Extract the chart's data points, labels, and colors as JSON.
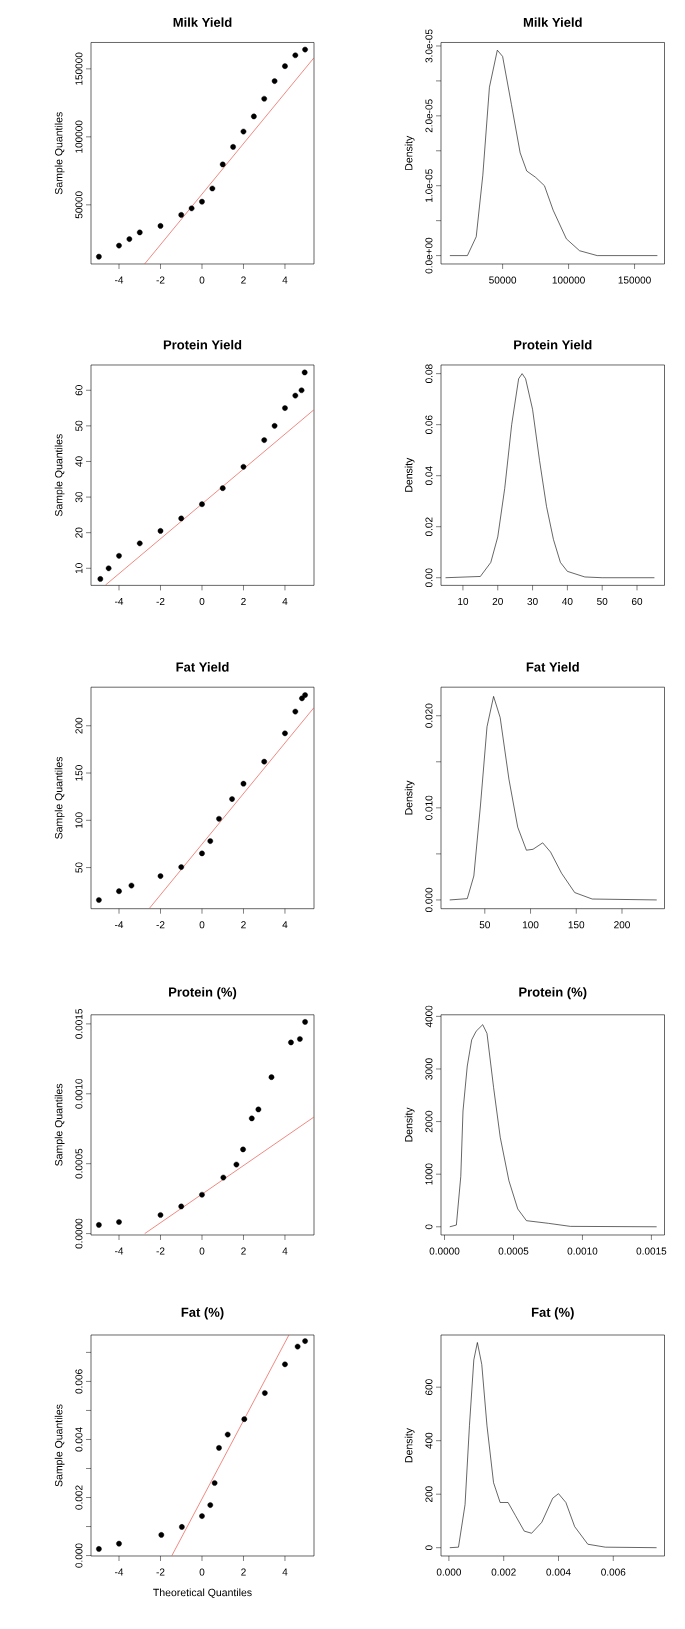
{
  "chart_data": [
    {
      "type": "scatter",
      "title": "Milk Yield",
      "ylabel": "Sample Quantiles",
      "marker": "circle",
      "xlim": [
        -5.35,
        5.4
      ],
      "ylim": [
        6500,
        169400
      ],
      "xticks": [
        -4,
        -2,
        0,
        2,
        4
      ],
      "yticks": [
        50000,
        100000,
        150000
      ],
      "series": [
        {
          "color": "#000000",
          "x": [
            -4.97,
            -4,
            -3.5,
            -3,
            -2,
            -1,
            -0.5,
            0,
            0.5,
            1,
            1.5,
            2,
            2.5,
            3,
            3.5,
            4,
            4.5,
            4.97
          ],
          "values": [
            11900,
            20000,
            24800,
            29700,
            34500,
            42600,
            47400,
            52300,
            62000,
            79700,
            92600,
            103900,
            115000,
            128000,
            141000,
            152000,
            160000,
            164200
          ]
        },
        {
          "type": "line",
          "marker": "none",
          "color": "#e8392e",
          "x": [
            -2.76,
            5.39
          ],
          "values": [
            6600,
            158000
          ]
        }
      ]
    },
    {
      "type": "line",
      "title": "Milk Yield",
      "ylabel": "Density",
      "color": "#000000",
      "xlim": [
        3300,
        172700
      ],
      "ylim": [
        -1.2e-06,
        3.05e-05
      ],
      "xticks": [
        50000,
        100000,
        150000
      ],
      "yticks": [
        {
          "value": 0,
          "label": "0.0e+00"
        },
        {
          "value": 5e-06,
          "label": null
        },
        {
          "value": 1e-05,
          "label": "1.0e-05"
        },
        {
          "value": 1.5e-05,
          "label": null
        },
        {
          "value": 2e-05,
          "label": "2.0e-05"
        },
        {
          "value": 2.5e-05,
          "label": null
        },
        {
          "value": 3e-05,
          "label": "3.0e-05"
        }
      ],
      "x": [
        10000,
        23300,
        30000,
        35000,
        40000,
        46000,
        50000,
        56700,
        63300,
        68300,
        75000,
        81700,
        88300,
        98300,
        108300,
        121700,
        167300
      ],
      "values": [
        0,
        0,
        2.7e-06,
        1.15e-05,
        2.41e-05,
        2.94e-05,
        2.85e-05,
        2.16e-05,
        1.47e-05,
        1.21e-05,
        1.12e-05,
        1e-05,
        6.5e-06,
        2.4e-06,
        7e-07,
        0,
        0
      ]
    },
    {
      "type": "scatter",
      "title": "Protein Yield",
      "ylabel": "Sample Quantiles",
      "marker": "circle",
      "xlim": [
        -5.35,
        5.4
      ],
      "ylim": [
        5.2,
        67.1
      ],
      "xticks": [
        -4,
        -2,
        0,
        2,
        4
      ],
      "yticks": [
        10,
        20,
        30,
        40,
        50,
        60
      ],
      "series": [
        {
          "color": "#000000",
          "x": [
            -4.9,
            -4.5,
            -4,
            -3,
            -2,
            -1,
            0,
            1,
            2,
            3,
            3.5,
            4,
            4.5,
            4.8,
            4.95
          ],
          "values": [
            7,
            10,
            13.5,
            17,
            20.5,
            24,
            28,
            32.5,
            38.5,
            46,
            50,
            55,
            58.5,
            60,
            65
          ]
        },
        {
          "type": "line",
          "marker": "none",
          "color": "#e8392e",
          "x": [
            -4.65,
            5.39
          ],
          "values": [
            5.3,
            54.5
          ]
        }
      ]
    },
    {
      "type": "line",
      "title": "Protein Yield",
      "ylabel": "Density",
      "color": "#000000",
      "xlim": [
        3.7,
        67.9
      ],
      "ylim": [
        -0.003,
        0.0834
      ],
      "xticks": [
        10,
        20,
        30,
        40,
        50,
        60
      ],
      "yticks": [
        {
          "value": 0,
          "label": "0.00"
        },
        {
          "value": 0.02,
          "label": "0.02"
        },
        {
          "value": 0.04,
          "label": "0.04"
        },
        {
          "value": 0.06,
          "label": "0.06"
        },
        {
          "value": 0.08,
          "label": "0.08"
        }
      ],
      "x": [
        5,
        15,
        18,
        20,
        22,
        24,
        26,
        27,
        28,
        30,
        32,
        34,
        36,
        38,
        40,
        45,
        50,
        65
      ],
      "values": [
        0,
        0.0005,
        0.006,
        0.016,
        0.035,
        0.06,
        0.078,
        0.08,
        0.078,
        0.066,
        0.046,
        0.028,
        0.015,
        0.006,
        0.0025,
        0.0003,
        0,
        0
      ]
    },
    {
      "type": "scatter",
      "title": "Fat Yield",
      "ylabel": "Sample Quantiles",
      "marker": "circle",
      "xlim": [
        -5.35,
        5.4
      ],
      "ylim": [
        6.5,
        240.8
      ],
      "xticks": [
        -4,
        -2,
        0,
        2,
        4
      ],
      "yticks": [
        50,
        100,
        150,
        200
      ],
      "series": [
        {
          "color": "#000000",
          "x": [
            -4.97,
            -4,
            -3.4,
            -2,
            -1,
            0,
            0.4,
            0.82,
            1.45,
            2,
            3,
            4,
            4.5,
            4.82,
            4.97
          ],
          "values": [
            15.7,
            25,
            31,
            41,
            50.5,
            65,
            78,
            101.6,
            122.5,
            138.7,
            162,
            192,
            215,
            229,
            232.5
          ]
        },
        {
          "type": "line",
          "marker": "none",
          "color": "#e8392e",
          "x": [
            -2.53,
            5.39
          ],
          "values": [
            7,
            219
          ]
        }
      ]
    },
    {
      "type": "line",
      "title": "Fat Yield",
      "ylabel": "Density",
      "color": "#000000",
      "xlim": [
        2.1,
        246.5
      ],
      "ylim": [
        -0.00095,
        0.0231
      ],
      "xticks": [
        50,
        100,
        150,
        200
      ],
      "yticks": [
        {
          "value": 0,
          "label": "0.000"
        },
        {
          "value": 0.005,
          "label": null
        },
        {
          "value": 0.01,
          "label": "0.010"
        },
        {
          "value": 0.015,
          "label": null
        },
        {
          "value": 0.02,
          "label": "0.020"
        }
      ],
      "x": [
        11.6,
        30.8,
        38,
        45.2,
        52.4,
        59.6,
        66.8,
        76.4,
        86,
        95.5,
        102.7,
        113.3,
        121.9,
        133.9,
        148.3,
        167.4,
        238
      ],
      "values": [
        0,
        0.00014,
        0.0026,
        0.0102,
        0.0188,
        0.0221,
        0.0198,
        0.0131,
        0.0079,
        0.0054,
        0.0055,
        0.0062,
        0.0052,
        0.0029,
        0.0008,
        0.0001,
        0
      ]
    },
    {
      "type": "scatter",
      "title": "Protein (%)",
      "ylabel": "Sample Quantiles",
      "marker": "circle",
      "xlim": [
        -5.35,
        5.4
      ],
      "ylim": [
        -1e-05,
        0.001565
      ],
      "xticks": [
        -4,
        -2,
        0,
        2,
        4
      ],
      "yticks": [
        {
          "value": 0,
          "label": "0.0000"
        },
        {
          "value": 0.0005,
          "label": "0.0005"
        },
        {
          "value": 0.001,
          "label": "0.0010"
        },
        {
          "value": 0.0015,
          "label": "0.0015"
        }
      ],
      "series": [
        {
          "color": "#000000",
          "x": [
            -4.97,
            -4,
            -2,
            -1,
            0,
            1.03,
            1.66,
            1.98,
            2.4,
            2.72,
            3.35,
            4.29,
            4.72,
            4.97
          ],
          "values": [
            6.2e-05,
            8.3e-05,
            0.000133,
            0.000194,
            0.000278,
            0.000401,
            0.000494,
            0.000602,
            0.000824,
            0.000888,
            0.001119,
            0.001367,
            0.001392,
            0.001514
          ]
        },
        {
          "type": "line",
          "marker": "none",
          "color": "#e8392e",
          "x": [
            -2.76,
            5.39
          ],
          "values": [
            0,
            0.000833
          ]
        }
      ]
    },
    {
      "type": "line",
      "title": "Protein (%)",
      "ylabel": "Density",
      "color": "#000000",
      "xlim": [
        -2.54e-05,
        0.001595
      ],
      "ylim": [
        -156,
        4030
      ],
      "xticks": [
        {
          "value": 0,
          "label": "0.0000"
        },
        {
          "value": 0.0005,
          "label": "0.0005"
        },
        {
          "value": 0.001,
          "label": "0.0010"
        },
        {
          "value": 0.0015,
          "label": "0.0015"
        }
      ],
      "yticks": [
        0,
        1000,
        2000,
        3000,
        4000
      ],
      "x": [
        3.8e-05,
        8.6e-05,
        0.000118,
        0.000134,
        0.000165,
        0.000197,
        0.000229,
        0.000277,
        0.000308,
        0.000356,
        0.000404,
        0.000467,
        0.000531,
        0.000594,
        0.000753,
        0.000912,
        0.001538
      ],
      "values": [
        0,
        33,
        959,
        2200,
        3056,
        3553,
        3717,
        3842,
        3676,
        2644,
        1702,
        876,
        339,
        116,
        66,
        8,
        0
      ]
    },
    {
      "type": "scatter",
      "title": "Fat (%)",
      "xlabel": "Theoretical Quantiles",
      "ylabel": "Sample Quantiles",
      "marker": "circle",
      "xlim": [
        -5.35,
        5.4
      ],
      "ylim": [
        -1.5e-05,
        0.0076
      ],
      "xticks": [
        -4,
        -2,
        0,
        2,
        4
      ],
      "yticks": [
        {
          "value": 0,
          "label": "0.000"
        },
        {
          "value": 0.001,
          "label": null
        },
        {
          "value": 0.002,
          "label": "0.002"
        },
        {
          "value": 0.003,
          "label": null
        },
        {
          "value": 0.004,
          "label": "0.004"
        },
        {
          "value": 0.005,
          "label": null
        },
        {
          "value": 0.006,
          "label": "0.006"
        },
        {
          "value": 0.007,
          "label": null
        }
      ],
      "series": [
        {
          "color": "#000000",
          "x": [
            -4.97,
            -4,
            -1.96,
            -0.97,
            0,
            0.4,
            0.61,
            0.82,
            1.24,
            2.04,
            3.03,
            4,
            4.61,
            4.97
          ],
          "values": [
            0.000227,
            0.00041,
            0.000712,
            0.000985,
            0.00136,
            0.00174,
            0.0025,
            0.00371,
            0.00417,
            0.0047,
            0.0056,
            0.00659,
            0.0072,
            0.00739
          ]
        },
        {
          "type": "line",
          "marker": "none",
          "color": "#e8392e",
          "x": [
            -1.45,
            4.19
          ],
          "values": [
            0,
            0.0076
          ]
        }
      ]
    },
    {
      "type": "line",
      "title": "Fat (%)",
      "ylabel": "Density",
      "color": "#000000",
      "xlim": [
        -0.000288,
        0.00787
      ],
      "ylim": [
        -31,
        795
      ],
      "xticks": [
        {
          "value": 0,
          "label": "0.000"
        },
        {
          "value": 0.002,
          "label": "0.002"
        },
        {
          "value": 0.004,
          "label": "0.004"
        },
        {
          "value": 0.006,
          "label": "0.006"
        }
      ],
      "yticks": [
        0,
        200,
        400,
        600
      ],
      "x": [
        3.2e-05,
        0.00035,
        0.00059,
        0.00075,
        0.00091,
        0.00104,
        0.0012,
        0.00139,
        0.00163,
        0.00187,
        0.00216,
        0.00243,
        0.00275,
        0.00302,
        0.00339,
        0.00379,
        0.004,
        0.00427,
        0.00459,
        0.00507,
        0.00571,
        0.00758
      ],
      "values": [
        0,
        2,
        161,
        456,
        702,
        767,
        685,
        456,
        243,
        169,
        169,
        120,
        62,
        54,
        95,
        185,
        202,
        169,
        79,
        13,
        2,
        0
      ]
    }
  ]
}
